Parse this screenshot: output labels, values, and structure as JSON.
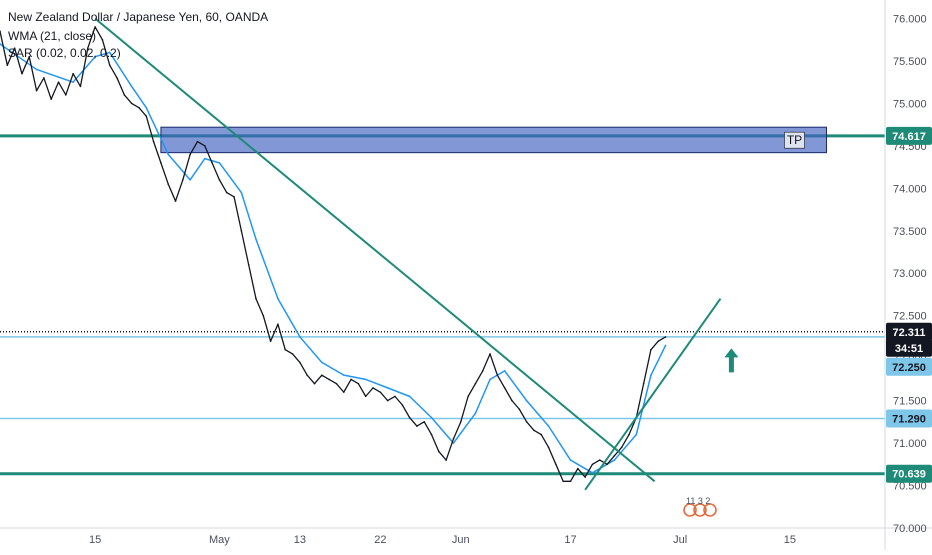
{
  "header": {
    "symbol_title": "New Zealand Dollar / Japanese Yen, 60, OANDA",
    "indicator_wma": "WMA (21, close)",
    "indicator_sar": "SAR (0.02, 0.02, 0.2)"
  },
  "chart_data": {
    "type": "line",
    "title": "New Zealand Dollar / Japanese Yen, 60, OANDA",
    "y_axis": {
      "min": 70.0,
      "max": 76.1,
      "ticks": [
        "76.000",
        "75.500",
        "75.000",
        "74.500",
        "74.000",
        "73.500",
        "73.000",
        "72.500",
        "72.000",
        "71.500",
        "71.000",
        "70.500",
        "70.000"
      ],
      "position": "right"
    },
    "x_axis": {
      "ticks": [
        {
          "label": "15",
          "x": 0.13
        },
        {
          "label": "May",
          "x": 0.3
        },
        {
          "label": "13",
          "x": 0.41
        },
        {
          "label": "22",
          "x": 0.52
        },
        {
          "label": "Jun",
          "x": 0.63
        },
        {
          "label": "17",
          "x": 0.78
        },
        {
          "label": "Jul",
          "x": 0.93
        },
        {
          "label": "15",
          "x": 1.08
        }
      ],
      "x_min": 0.0,
      "x_max": 1.21
    },
    "price_series": {
      "name": "",
      "color": "#131722",
      "x": [
        0.0,
        0.01,
        0.02,
        0.03,
        0.04,
        0.05,
        0.06,
        0.07,
        0.08,
        0.09,
        0.1,
        0.11,
        0.12,
        0.13,
        0.14,
        0.15,
        0.16,
        0.17,
        0.18,
        0.19,
        0.2,
        0.21,
        0.22,
        0.23,
        0.24,
        0.25,
        0.26,
        0.27,
        0.28,
        0.29,
        0.3,
        0.31,
        0.32,
        0.33,
        0.34,
        0.35,
        0.36,
        0.37,
        0.38,
        0.39,
        0.4,
        0.41,
        0.42,
        0.43,
        0.44,
        0.45,
        0.46,
        0.47,
        0.48,
        0.49,
        0.5,
        0.51,
        0.52,
        0.53,
        0.54,
        0.55,
        0.56,
        0.57,
        0.58,
        0.59,
        0.6,
        0.61,
        0.62,
        0.63,
        0.64,
        0.65,
        0.66,
        0.67,
        0.68,
        0.69,
        0.7,
        0.71,
        0.72,
        0.73,
        0.74,
        0.75,
        0.76,
        0.77,
        0.78,
        0.79,
        0.8,
        0.81,
        0.82,
        0.83,
        0.84,
        0.85,
        0.86,
        0.87,
        0.88,
        0.89,
        0.9,
        0.91
      ],
      "y": [
        75.85,
        75.45,
        75.65,
        75.35,
        75.55,
        75.15,
        75.3,
        75.05,
        75.25,
        75.1,
        75.35,
        75.2,
        75.65,
        75.9,
        75.75,
        75.45,
        75.3,
        75.1,
        75.0,
        74.95,
        74.85,
        74.55,
        74.3,
        74.05,
        73.85,
        74.1,
        74.4,
        74.55,
        74.5,
        74.3,
        74.1,
        73.95,
        73.9,
        73.5,
        73.1,
        72.7,
        72.5,
        72.2,
        72.4,
        72.1,
        72.05,
        71.95,
        71.8,
        71.7,
        71.8,
        71.75,
        71.7,
        71.6,
        71.75,
        71.7,
        71.55,
        71.65,
        71.6,
        71.5,
        71.55,
        71.45,
        71.3,
        71.2,
        71.25,
        71.1,
        70.9,
        70.8,
        71.05,
        71.25,
        71.55,
        71.7,
        71.85,
        72.05,
        71.8,
        71.65,
        71.5,
        71.4,
        71.25,
        71.15,
        71.1,
        70.95,
        70.75,
        70.55,
        70.55,
        70.7,
        70.6,
        70.75,
        70.8,
        70.75,
        70.85,
        70.95,
        71.1,
        71.3,
        71.7,
        72.1,
        72.2,
        72.25
      ]
    },
    "wma_series": {
      "name": "WMA (21, close)",
      "color": "#2196f3",
      "x": [
        0.0,
        0.05,
        0.1,
        0.13,
        0.15,
        0.18,
        0.2,
        0.23,
        0.26,
        0.28,
        0.3,
        0.33,
        0.35,
        0.38,
        0.41,
        0.44,
        0.47,
        0.5,
        0.53,
        0.56,
        0.59,
        0.62,
        0.65,
        0.67,
        0.69,
        0.72,
        0.75,
        0.78,
        0.81,
        0.84,
        0.87,
        0.89,
        0.91
      ],
      "y": [
        75.7,
        75.4,
        75.25,
        75.55,
        75.6,
        75.2,
        74.95,
        74.4,
        74.1,
        74.35,
        74.3,
        73.95,
        73.4,
        72.7,
        72.25,
        71.95,
        71.8,
        71.75,
        71.65,
        71.55,
        71.3,
        71.0,
        71.35,
        71.75,
        71.85,
        71.5,
        71.2,
        70.8,
        70.65,
        70.8,
        71.1,
        71.8,
        72.15
      ]
    },
    "horizontal_levels": [
      {
        "price": 74.617,
        "label": "74.617",
        "color": "#1e8a78",
        "style": "solid",
        "weight": "thick"
      },
      {
        "price": 72.311,
        "label": "72.311",
        "color": "#131722",
        "style": "dotted",
        "weight": "thin"
      },
      {
        "price": 72.25,
        "label": "72.250",
        "color": "#7fc7e8",
        "style": "solid",
        "weight": "thin"
      },
      {
        "price": 71.29,
        "label": "71.290",
        "color": "#7fc7e8",
        "style": "solid",
        "weight": "thin"
      },
      {
        "price": 70.639,
        "label": "70.639",
        "color": "#1e8a78",
        "style": "solid",
        "weight": "thick"
      }
    ],
    "trend_lines": [
      {
        "name": "descending-trendline",
        "color": "#1e8a78",
        "points": [
          [
            0.13,
            76.0
          ],
          [
            0.895,
            70.55
          ]
        ]
      },
      {
        "name": "ascending-trendline",
        "color": "#1e8a78",
        "points": [
          [
            0.8,
            70.45
          ],
          [
            0.985,
            72.7
          ]
        ]
      }
    ],
    "tp_zone": {
      "label": "TP",
      "price_top": 74.72,
      "price_bottom": 74.42,
      "color": "#3f5fc0",
      "x_start": 0.22,
      "x_end": 1.13
    },
    "countdown_label": "34:51",
    "arrow": {
      "direction": "up",
      "color": "#1e8a78",
      "x": 1.0,
      "price": 71.95
    },
    "events": {
      "labels": [
        "11",
        "3",
        "2"
      ]
    },
    "grid": false,
    "legend": "top-left"
  }
}
